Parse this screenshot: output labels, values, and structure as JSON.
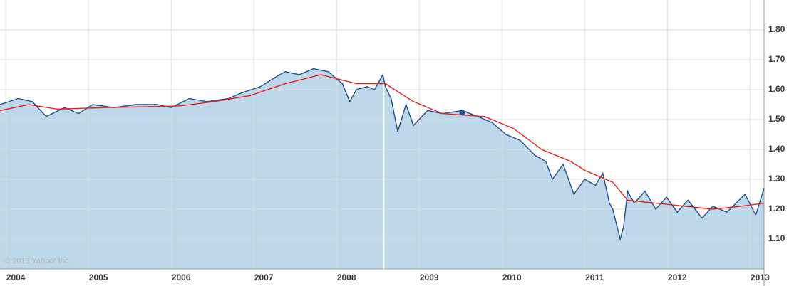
{
  "chart_data": {
    "type": "line",
    "copyright": "© 2013 Yahoo! Inc.",
    "xlim": [
      2003.93,
      2013.17
    ],
    "xticks": [
      2004,
      2005,
      2006,
      2007,
      2008,
      2009,
      2010,
      2011,
      2012,
      2013
    ],
    "ylim": [
      1.0,
      1.9
    ],
    "yticks": [
      {
        "value": 1.1,
        "label": "1.10"
      },
      {
        "value": 1.2,
        "label": "1.20"
      },
      {
        "value": 1.3,
        "label": "1.30"
      },
      {
        "value": 1.4,
        "label": "1.40"
      },
      {
        "value": 1.5,
        "label": "1.50"
      },
      {
        "value": 1.6,
        "label": "1.60"
      },
      {
        "value": 1.7,
        "label": "1.70"
      },
      {
        "value": 1.8,
        "label": "1.80"
      }
    ],
    "grid": true,
    "event_line_x": 2008.57,
    "event_marker": {
      "x": 2009.52,
      "y": 1.523,
      "color": "#1f4e8c"
    },
    "series": [
      {
        "color": "#1f4e8c",
        "fill": "#bcd8ea",
        "x": [
          2003.93,
          2004.15,
          2004.32,
          2004.49,
          2004.71,
          2004.88,
          2005.05,
          2005.31,
          2005.57,
          2005.83,
          2006.0,
          2006.22,
          2006.43,
          2006.69,
          2006.86,
          2007.08,
          2007.25,
          2007.38,
          2007.55,
          2007.72,
          2007.9,
          2008.07,
          2008.16,
          2008.24,
          2008.37,
          2008.46,
          2008.56,
          2008.59,
          2008.66,
          2008.74,
          2008.84,
          2008.93,
          2009.1,
          2009.28,
          2009.52,
          2009.71,
          2009.88,
          2010.05,
          2010.22,
          2010.4,
          2010.53,
          2010.61,
          2010.74,
          2010.87,
          2011.0,
          2011.13,
          2011.22,
          2011.3,
          2011.34,
          2011.43,
          2011.47,
          2011.52,
          2011.6,
          2011.73,
          2011.86,
          2011.99,
          2012.12,
          2012.25,
          2012.42,
          2012.55,
          2012.72,
          2012.94,
          2013.07,
          2013.17
        ],
        "values": [
          1.55,
          1.57,
          1.56,
          1.51,
          1.54,
          1.52,
          1.55,
          1.54,
          1.55,
          1.55,
          1.54,
          1.57,
          1.56,
          1.57,
          1.59,
          1.61,
          1.64,
          1.66,
          1.65,
          1.67,
          1.66,
          1.62,
          1.56,
          1.6,
          1.61,
          1.6,
          1.65,
          1.61,
          1.57,
          1.46,
          1.55,
          1.48,
          1.53,
          1.52,
          1.53,
          1.51,
          1.49,
          1.45,
          1.43,
          1.38,
          1.36,
          1.3,
          1.35,
          1.25,
          1.3,
          1.28,
          1.32,
          1.22,
          1.2,
          1.1,
          1.14,
          1.26,
          1.22,
          1.26,
          1.2,
          1.24,
          1.19,
          1.23,
          1.17,
          1.21,
          1.19,
          1.25,
          1.18,
          1.27
        ]
      },
      {
        "color": "#e8221b",
        "x": [
          2003.93,
          2004.28,
          2004.62,
          2005.22,
          2006.09,
          2006.52,
          2006.95,
          2007.38,
          2007.81,
          2008.24,
          2008.59,
          2008.93,
          2009.28,
          2009.79,
          2010.14,
          2010.48,
          2010.83,
          2011.0,
          2011.34,
          2011.52,
          2011.86,
          2012.21,
          2012.55,
          2012.9,
          2013.17
        ],
        "values": [
          1.53,
          1.55,
          1.535,
          1.54,
          1.545,
          1.56,
          1.58,
          1.62,
          1.65,
          1.62,
          1.62,
          1.56,
          1.52,
          1.51,
          1.47,
          1.4,
          1.36,
          1.33,
          1.29,
          1.23,
          1.22,
          1.21,
          1.2,
          1.21,
          1.22
        ]
      }
    ]
  }
}
